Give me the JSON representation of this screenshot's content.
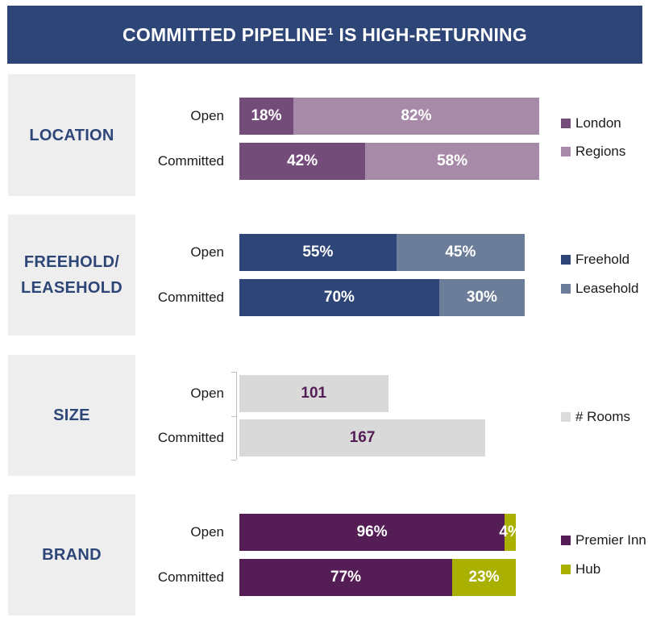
{
  "title": "COMMITTED PIPELINE¹ IS HIGH-RETURNING",
  "chart_data": [
    {
      "type": "bar",
      "stacked": true,
      "orientation": "horizontal",
      "label": "LOCATION",
      "categories": [
        "Open",
        "Committed"
      ],
      "series": [
        {
          "name": "London",
          "values": [
            18,
            42
          ],
          "labels": [
            "18%",
            "42%"
          ],
          "color": "#734c7a"
        },
        {
          "name": "Regions",
          "values": [
            82,
            58
          ],
          "labels": [
            "82%",
            "58%"
          ],
          "color": "#a68aa8"
        }
      ]
    },
    {
      "type": "bar",
      "stacked": true,
      "orientation": "horizontal",
      "label": "FREEHOLD/\nLEASEHOLD",
      "categories": [
        "Open",
        "Committed"
      ],
      "series": [
        {
          "name": "Freehold",
          "values": [
            55,
            70
          ],
          "labels": [
            "55%",
            "70%"
          ],
          "color": "#2e4677"
        },
        {
          "name": "Leasehold",
          "values": [
            45,
            30
          ],
          "labels": [
            "45%",
            "30%"
          ],
          "color": "#6b7d99"
        }
      ]
    },
    {
      "type": "bar",
      "stacked": false,
      "orientation": "horizontal",
      "label": "SIZE",
      "categories": [
        "Open",
        "Committed"
      ],
      "series": [
        {
          "name": "# Rooms",
          "values": [
            101,
            167
          ],
          "labels": [
            "101",
            "167"
          ],
          "color": "#d9d9d9",
          "label_color": "#551d55"
        }
      ]
    },
    {
      "type": "bar",
      "stacked": true,
      "orientation": "horizontal",
      "label": "BRAND",
      "categories": [
        "Open",
        "Committed"
      ],
      "series": [
        {
          "name": "Premier Inn",
          "values": [
            96,
            77
          ],
          "labels": [
            "96%",
            "77%"
          ],
          "color": "#551d55"
        },
        {
          "name": "Hub",
          "values": [
            4,
            23
          ],
          "labels": [
            "4%",
            "23%"
          ],
          "color": "#aab000"
        }
      ]
    }
  ]
}
